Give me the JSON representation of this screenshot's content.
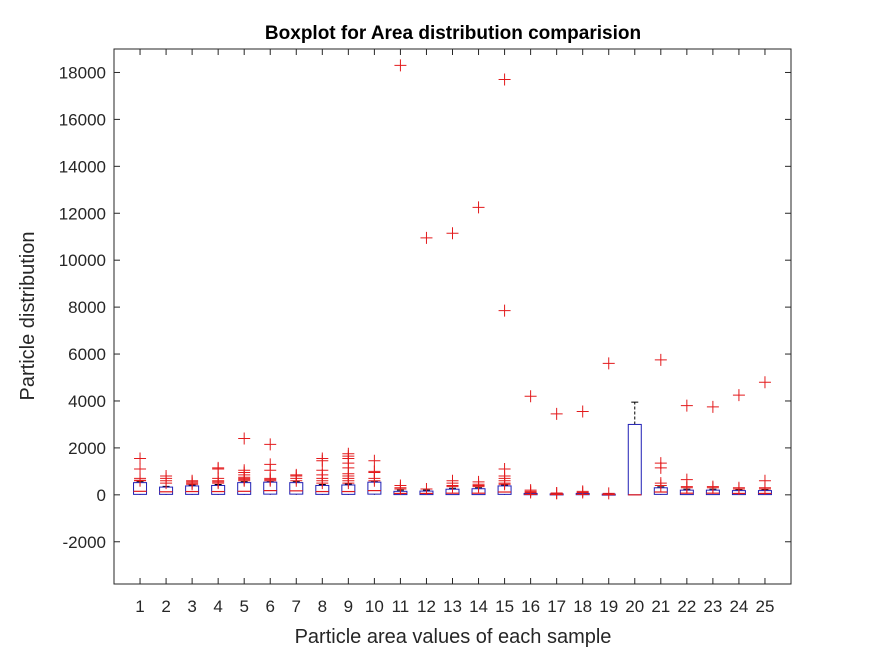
{
  "chart_data": {
    "type": "boxplot",
    "title": "Boxplot for Area distribution comparision",
    "xlabel": "Particle area values of each sample",
    "ylabel": "Particle distribution",
    "ylim": [
      -3800,
      19000
    ],
    "yticks": [
      -2000,
      0,
      2000,
      4000,
      6000,
      8000,
      10000,
      12000,
      14000,
      16000,
      18000
    ],
    "categories": [
      "1",
      "2",
      "3",
      "4",
      "5",
      "6",
      "7",
      "8",
      "9",
      "10",
      "11",
      "12",
      "13",
      "14",
      "15",
      "16",
      "17",
      "18",
      "19",
      "20",
      "21",
      "22",
      "23",
      "24",
      "25"
    ],
    "grid": false,
    "legend": "none",
    "colors": {
      "box": "#1f1fb4",
      "outlier": "#e31a1c",
      "whisker": "#000000",
      "axis": "#262626"
    },
    "boxes": [
      {
        "category": "1",
        "whisker_low": 0,
        "q1": 20,
        "median": 150,
        "q3": 520,
        "whisker_high": 560
      },
      {
        "category": "2",
        "whisker_low": 0,
        "q1": 20,
        "median": 130,
        "q3": 330,
        "whisker_high": 360
      },
      {
        "category": "3",
        "whisker_low": 0,
        "q1": 20,
        "median": 140,
        "q3": 380,
        "whisker_high": 420
      },
      {
        "category": "4",
        "whisker_low": 0,
        "q1": 20,
        "median": 140,
        "q3": 400,
        "whisker_high": 440
      },
      {
        "category": "5",
        "whisker_low": 0,
        "q1": 20,
        "median": 150,
        "q3": 520,
        "whisker_high": 560
      },
      {
        "category": "6",
        "whisker_low": 0,
        "q1": 30,
        "median": 180,
        "q3": 540,
        "whisker_high": 580
      },
      {
        "category": "7",
        "whisker_low": 0,
        "q1": 30,
        "median": 170,
        "q3": 520,
        "whisker_high": 560
      },
      {
        "category": "8",
        "whisker_low": 0,
        "q1": 20,
        "median": 140,
        "q3": 400,
        "whisker_high": 440
      },
      {
        "category": "9",
        "whisker_low": 0,
        "q1": 20,
        "median": 140,
        "q3": 420,
        "whisker_high": 460
      },
      {
        "category": "10",
        "whisker_low": 0,
        "q1": 30,
        "median": 180,
        "q3": 540,
        "whisker_high": 580
      },
      {
        "category": "11",
        "whisker_low": 0,
        "q1": 10,
        "median": 60,
        "q3": 150,
        "whisker_high": 200
      },
      {
        "category": "12",
        "whisker_low": 0,
        "q1": 10,
        "median": 60,
        "q3": 160,
        "whisker_high": 200
      },
      {
        "category": "13",
        "whisker_low": 0,
        "q1": 10,
        "median": 70,
        "q3": 240,
        "whisker_high": 280
      },
      {
        "category": "14",
        "whisker_low": 0,
        "q1": 10,
        "median": 70,
        "q3": 260,
        "whisker_high": 300
      },
      {
        "category": "15",
        "whisker_low": 0,
        "q1": 20,
        "median": 120,
        "q3": 380,
        "whisker_high": 420
      },
      {
        "category": "16",
        "whisker_low": 0,
        "q1": 5,
        "median": 20,
        "q3": 60,
        "whisker_high": 80
      },
      {
        "category": "17",
        "whisker_low": 0,
        "q1": 5,
        "median": 15,
        "q3": 40,
        "whisker_high": 60
      },
      {
        "category": "18",
        "whisker_low": 0,
        "q1": 5,
        "median": 20,
        "q3": 60,
        "whisker_high": 80
      },
      {
        "category": "19",
        "whisker_low": 0,
        "q1": 5,
        "median": 10,
        "q3": 30,
        "whisker_high": 40
      },
      {
        "category": "20",
        "whisker_low": 0,
        "q1": 0,
        "median": 0,
        "q3": 3000,
        "whisker_high": 3950
      },
      {
        "category": "21",
        "whisker_low": 0,
        "q1": 20,
        "median": 120,
        "q3": 300,
        "whisker_high": 340
      },
      {
        "category": "22",
        "whisker_low": 0,
        "q1": 10,
        "median": 70,
        "q3": 200,
        "whisker_high": 240
      },
      {
        "category": "23",
        "whisker_low": 0,
        "q1": 10,
        "median": 70,
        "q3": 200,
        "whisker_high": 240
      },
      {
        "category": "24",
        "whisker_low": 0,
        "q1": 10,
        "median": 60,
        "q3": 180,
        "whisker_high": 220
      },
      {
        "category": "25",
        "whisker_low": 0,
        "q1": 10,
        "median": 60,
        "q3": 180,
        "whisker_high": 220
      }
    ],
    "outliers": [
      {
        "category": "1",
        "values": [
          1550,
          1100,
          700,
          620,
          600
        ]
      },
      {
        "category": "2",
        "values": [
          800,
          700,
          600,
          500
        ]
      },
      {
        "category": "3",
        "values": [
          600,
          550,
          500,
          450
        ]
      },
      {
        "category": "4",
        "values": [
          1150,
          1100,
          700,
          600,
          550,
          500
        ]
      },
      {
        "category": "5",
        "values": [
          2400,
          1050,
          950,
          850,
          750,
          700,
          650,
          600
        ]
      },
      {
        "category": "6",
        "values": [
          2150,
          1300,
          1050,
          700,
          650,
          600
        ]
      },
      {
        "category": "7",
        "values": [
          850,
          800,
          700,
          600
        ]
      },
      {
        "category": "8",
        "values": [
          1550,
          1450,
          1050,
          850,
          700,
          600,
          500
        ]
      },
      {
        "category": "9",
        "values": [
          1750,
          1650,
          1550,
          1350,
          1150,
          900,
          800,
          700,
          600,
          500
        ]
      },
      {
        "category": "10",
        "values": [
          1450,
          1000,
          950,
          700,
          600
        ]
      },
      {
        "category": "11",
        "values": [
          18300,
          400,
          300,
          250
        ]
      },
      {
        "category": "12",
        "values": [
          10950,
          250
        ]
      },
      {
        "category": "13",
        "values": [
          11150,
          600,
          500,
          400,
          350
        ]
      },
      {
        "category": "14",
        "values": [
          12250,
          550,
          450,
          400,
          350
        ]
      },
      {
        "category": "15",
        "values": [
          17700,
          7850,
          1100,
          800,
          700,
          600,
          500,
          450
        ]
      },
      {
        "category": "16",
        "values": [
          4200,
          200,
          150,
          100
        ]
      },
      {
        "category": "17",
        "values": [
          3450,
          80,
          60
        ]
      },
      {
        "category": "18",
        "values": [
          3550,
          150,
          100
        ]
      },
      {
        "category": "19",
        "values": [
          5600,
          60
        ]
      },
      {
        "category": "21",
        "values": [
          5750,
          1350,
          1150,
          500,
          400
        ]
      },
      {
        "category": "22",
        "values": [
          3800,
          650,
          350,
          300
        ]
      },
      {
        "category": "23",
        "values": [
          3750,
          350,
          300
        ]
      },
      {
        "category": "24",
        "values": [
          4250,
          300,
          250
        ]
      },
      {
        "category": "25",
        "values": [
          4800,
          600,
          300,
          250
        ]
      }
    ]
  }
}
